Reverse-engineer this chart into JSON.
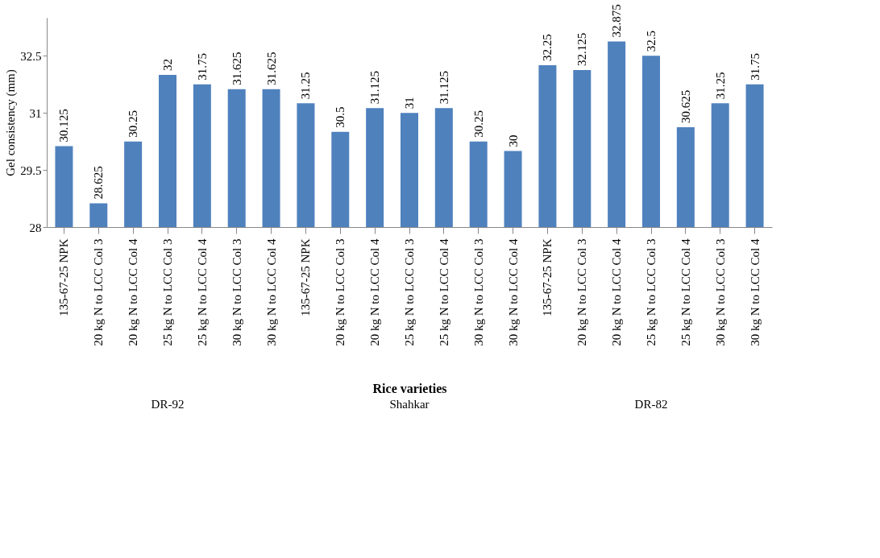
{
  "chart_data": {
    "type": "bar",
    "xlabel": "Rice varieties",
    "ylabel": "Gel consistency (mm)",
    "categories": [
      "135-67-25 NPK",
      "20 kg N to LCC Col 3",
      "20 kg N to LCC Col 4",
      "25 kg N to LCC Col 3",
      "25 kg N to LCC Col 4",
      "30 kg N to LCC Col 3",
      "30 kg N to LCC Col 4",
      "135-67-25 NPK",
      "20 kg N to LCC Col 3",
      "20 kg N to LCC Col 4",
      "25 kg N to LCC Col 3",
      "25 kg N to LCC Col 4",
      "30 kg N to LCC Col 3",
      "30 kg N to LCC Col 4",
      "135-67-25 NPK",
      "20 kg N to LCC Col 3",
      "20 kg N to LCC Col 4",
      "25 kg N to LCC Col 3",
      "25 kg N to LCC Col 4",
      "30 kg N to LCC Col 3",
      "30 kg N to LCC Col 4"
    ],
    "values": [
      30.125,
      28.625,
      30.25,
      32,
      31.75,
      31.625,
      31.625,
      31.25,
      30.5,
      31.125,
      31,
      31.125,
      30.25,
      30,
      32.25,
      32.125,
      32.875,
      32.5,
      30.625,
      31.25,
      31.75
    ],
    "color": "#4f81bd",
    "data_labels": true,
    "ylim": [
      28,
      33.5
    ],
    "yticks": [
      28,
      29.5,
      31,
      32.5
    ],
    "grid": false,
    "annotations": [
      "DR-92",
      "Shahkar",
      "DR-82"
    ]
  }
}
